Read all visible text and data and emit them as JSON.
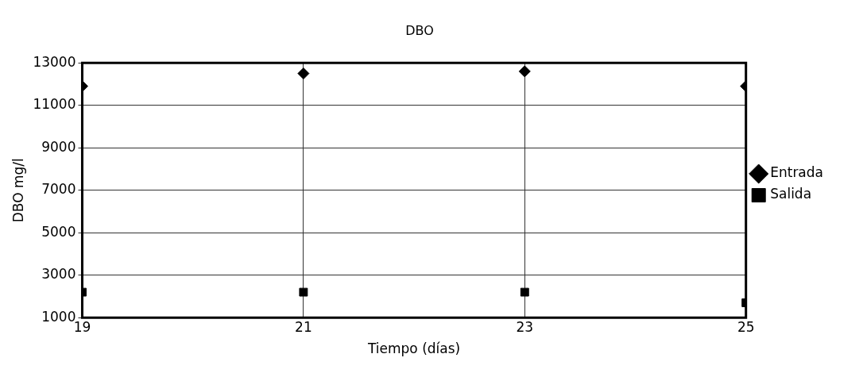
{
  "chart_data": {
    "type": "scatter",
    "title": "DBO",
    "xlabel": "Tiempo (días)",
    "ylabel": "DBO mg/l",
    "x": [
      19,
      21,
      23,
      25
    ],
    "series": [
      {
        "name": "Entrada",
        "color": "#000000",
        "marker": "diamond",
        "values": [
          11900,
          12500,
          12600,
          11900
        ]
      },
      {
        "name": "Salida",
        "color": "#000000",
        "marker": "square",
        "values": [
          2200,
          2200,
          2200,
          1700
        ]
      }
    ],
    "xlim": [
      19,
      25
    ],
    "xticks": [
      19,
      21,
      23,
      25
    ],
    "ylim": [
      1000,
      13000
    ],
    "yticks": [
      1000,
      3000,
      5000,
      7000,
      9000,
      11000,
      13000
    ],
    "grid": true,
    "legend": "right"
  }
}
